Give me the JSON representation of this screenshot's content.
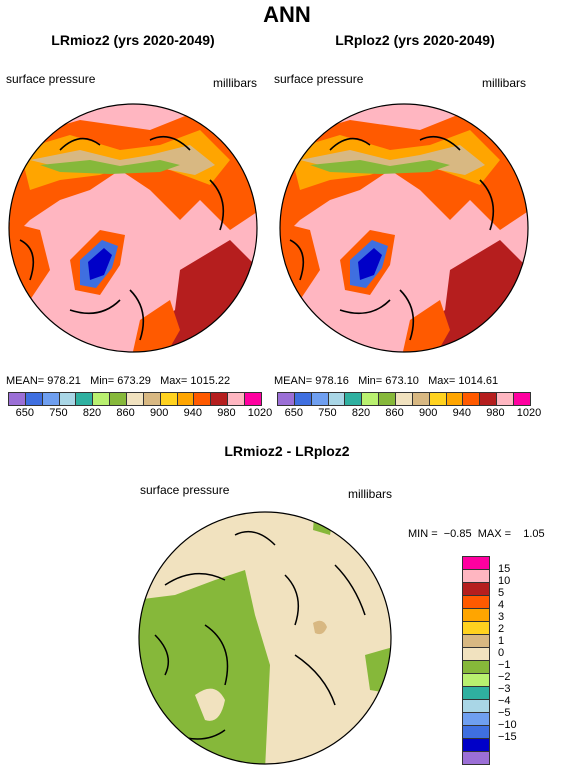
{
  "title": "ANN",
  "panel_left": {
    "title": "LRmioz2 (yrs 2020-2049)",
    "variable": "surface pressure",
    "units": "millibars",
    "stats": "MEAN= 978.21   Min= 673.29   Max= 1015.22"
  },
  "panel_right": {
    "title": "LRploz2 (yrs 2020-2049)",
    "variable": "surface pressure",
    "units": "millibars",
    "stats": "MEAN= 978.16   Min= 673.10   Max= 1014.61"
  },
  "colorbar_top": {
    "colors": [
      "#9b6fd6",
      "#3f6fe0",
      "#6f9ff0",
      "#a9d6e6",
      "#2fb0a0",
      "#b9f070",
      "#86b83a",
      "#f1e2bf",
      "#d8b882",
      "#ffd21f",
      "#ffa500",
      "#ff5a00",
      "#b51e1e",
      "#ffb6c1",
      "#ff00a0"
    ],
    "labels": [
      "650",
      "750",
      "820",
      "860",
      "900",
      "940",
      "980",
      "1020"
    ]
  },
  "panel_diff": {
    "title": "LRmioz2 - LRploz2",
    "variable": "surface pressure",
    "units": "millibars",
    "stats": "MIN =  −0.85  MAX =    1.05"
  },
  "legend_diff": {
    "colors": [
      "#ff00a0",
      "#ffb6c1",
      "#b51e1e",
      "#ff5a00",
      "#ffa500",
      "#ffd21f",
      "#d8b882",
      "#f1e2bf",
      "#86b83a",
      "#b9f070",
      "#2fb0a0",
      "#a9d6e6",
      "#6f9ff0",
      "#3f6fe0",
      "#0000c8",
      "#9b6fd6"
    ],
    "labels": [
      "15",
      "10",
      "5",
      "4",
      "3",
      "2",
      "1",
      "0",
      "−1",
      "−2",
      "−3",
      "−4",
      "−5",
      "−10",
      "−15"
    ]
  }
}
